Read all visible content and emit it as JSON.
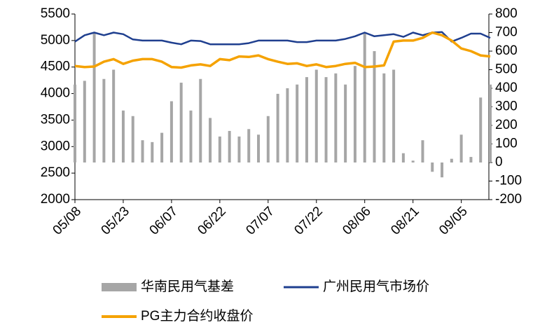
{
  "chart_data": {
    "type": "combo",
    "categories": [
      "05/08",
      null,
      null,
      null,
      null,
      "05/23",
      null,
      null,
      null,
      null,
      "06/07",
      null,
      null,
      null,
      null,
      "06/22",
      null,
      null,
      null,
      null,
      "07/07",
      null,
      null,
      null,
      null,
      "07/22",
      null,
      null,
      null,
      null,
      "08/06",
      null,
      null,
      null,
      null,
      "08/21",
      null,
      null,
      null,
      null,
      "09/05",
      null,
      null,
      null
    ],
    "series": [
      {
        "name": "华南民用气基差",
        "type": "bar",
        "axis": "y2",
        "color": "#a6a6a6",
        "values": [
          420,
          440,
          700,
          450,
          500,
          280,
          250,
          120,
          110,
          160,
          330,
          430,
          280,
          450,
          240,
          140,
          170,
          140,
          180,
          150,
          250,
          370,
          400,
          420,
          460,
          500,
          460,
          480,
          420,
          520,
          700,
          600,
          480,
          500,
          50,
          10,
          120,
          -50,
          -80,
          20,
          150,
          30,
          350,
          420
        ]
      },
      {
        "name": "广州民用气市场价",
        "type": "line",
        "color": "#1f3f8f",
        "values": [
          4980,
          5100,
          5150,
          5100,
          5150,
          5120,
          5020,
          5000,
          5000,
          5000,
          4960,
          4930,
          5000,
          4990,
          4930,
          4930,
          4930,
          4930,
          4950,
          5000,
          5000,
          5000,
          5000,
          4970,
          4970,
          5000,
          5000,
          5000,
          5030,
          5080,
          5150,
          5080,
          5100,
          5120,
          5070,
          5150,
          5100,
          5150,
          5160,
          4980,
          5050,
          5130,
          5130,
          5050
        ]
      },
      {
        "name": "PG主力合约收盘价",
        "type": "line",
        "color": "#f5a200",
        "values": [
          4520,
          4500,
          4510,
          4600,
          4650,
          4560,
          4620,
          4650,
          4650,
          4600,
          4500,
          4490,
          4530,
          4550,
          4520,
          4650,
          4630,
          4700,
          4690,
          4720,
          4650,
          4600,
          4560,
          4570,
          4520,
          4550,
          4500,
          4520,
          4560,
          4580,
          4500,
          4510,
          4530,
          4980,
          5000,
          5000,
          5050,
          5150,
          5100,
          5000,
          4850,
          4800,
          4720,
          4700
        ]
      }
    ],
    "ylim": [
      2000,
      5500
    ],
    "yticks": [
      2000,
      2500,
      3000,
      3500,
      4000,
      4500,
      5000,
      5500
    ],
    "y2lim": [
      -200,
      800
    ],
    "y2ticks": [
      -200,
      -100,
      0,
      100,
      200,
      300,
      400,
      500,
      600,
      700,
      800
    ],
    "grid": false
  }
}
